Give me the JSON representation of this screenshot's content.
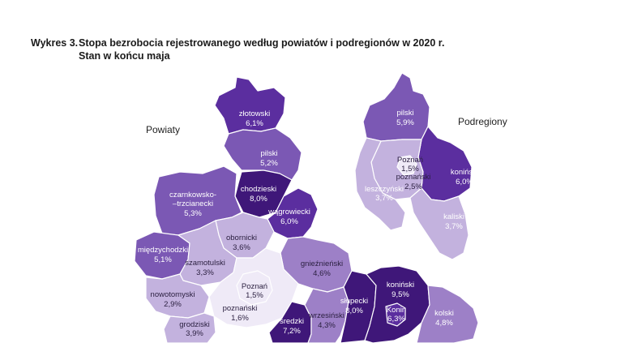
{
  "header": {
    "prefix": "Wykres 3.",
    "title_line1": "Stopa bezrobocia rejestrowanego według powiatów i podregionów w 2020 r.",
    "title_line2": "Stan w końcu maja"
  },
  "labels": {
    "left_map": "Powiaty",
    "right_map": "Podregiony"
  },
  "colors": {
    "class_1": "#efeaf7",
    "class_2": "#c3b2de",
    "class_3": "#9d80c7",
    "class_4": "#7b58b4",
    "class_5": "#5b2e9f",
    "class_6": "#3f1779",
    "border": "#ffffff"
  },
  "powiaty": [
    {
      "name": "złotowski",
      "value": "6,1%",
      "rate": 6.1
    },
    {
      "name": "pilski",
      "value": "5,2%",
      "rate": 5.2
    },
    {
      "name": "chodzieski",
      "value": "8,0%",
      "rate": 8.0
    },
    {
      "name": "czarnkowsko-\n–trzcianecki",
      "value": "5,3%",
      "rate": 5.3
    },
    {
      "name": "wągrowiecki",
      "value": "6,0%",
      "rate": 6.0
    },
    {
      "name": "obornicki",
      "value": "3,6%",
      "rate": 3.6
    },
    {
      "name": "międzychodzki",
      "value": "5,1%",
      "rate": 5.1
    },
    {
      "name": "szamotulski",
      "value": "3,3%",
      "rate": 3.3
    },
    {
      "name": "gnieźnieński",
      "value": "4,6%",
      "rate": 4.6
    },
    {
      "name": "nowotomyski",
      "value": "2,9%",
      "rate": 2.9
    },
    {
      "name": "Poznań",
      "value": "1,5%",
      "rate": 1.5
    },
    {
      "name": "poznański",
      "value": "1,6%",
      "rate": 1.6
    },
    {
      "name": "koniński",
      "value": "9,5%",
      "rate": 9.5
    },
    {
      "name": "słupecki",
      "value": "8,0%",
      "rate": 8.0
    },
    {
      "name": "Konin",
      "value": "6,3%",
      "rate": 6.3
    },
    {
      "name": "grodziski",
      "value": "3,9%",
      "rate": 3.9
    },
    {
      "name": "średzki",
      "value": "7,2%",
      "rate": 7.2
    },
    {
      "name": "wrzesiński",
      "value": "4,3%",
      "rate": 4.3
    },
    {
      "name": "kolski",
      "value": "4,8%",
      "rate": 4.8
    }
  ],
  "podregiony": [
    {
      "name": "pilski",
      "value": "5,9%",
      "rate": 5.9
    },
    {
      "name": "Poznań",
      "value": "1,5%",
      "rate": 1.5
    },
    {
      "name": "poznański",
      "value": "2,5%",
      "rate": 2.5
    },
    {
      "name": "leszczyński",
      "value": "3,7%",
      "rate": 3.7
    },
    {
      "name": "koniński",
      "value": "6,0%",
      "rate": 6.0
    },
    {
      "name": "kaliski",
      "value": "3,7%",
      "rate": 3.7
    }
  ]
}
